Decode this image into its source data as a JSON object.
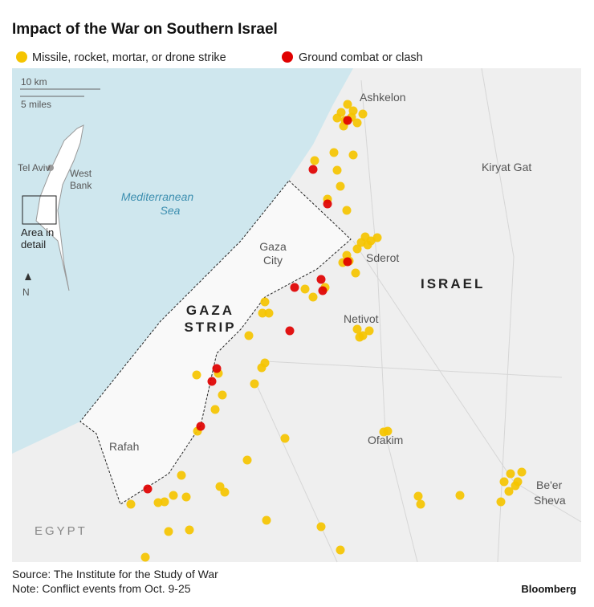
{
  "header": {
    "title": "Impact of the War on Southern Israel"
  },
  "legend": {
    "items": [
      {
        "label": "Missile, rocket, mortar, or drone strike",
        "color": "#f5c400"
      },
      {
        "label": "Ground combat or clash",
        "color": "#e00000"
      }
    ]
  },
  "scale": {
    "km": "10 km",
    "miles": "5 miles"
  },
  "inset": {
    "tel_aviv": "Tel Aviv",
    "west_bank": [
      "West",
      "Bank"
    ],
    "area": [
      "Area in",
      "detail"
    ],
    "north": "N"
  },
  "places": {
    "sea": [
      "Mediterranean",
      "Sea"
    ],
    "ashkelon": "Ashkelon",
    "kiryat_gat": "Kiryat Gat",
    "gaza_city": [
      "Gaza",
      "City"
    ],
    "sderot": "Sderot",
    "israel": "ISRAEL",
    "gaza_strip": [
      "GAZA",
      "STRIP"
    ],
    "netivot": "Netivot",
    "ofakim": "Ofakim",
    "rafah": "Rafah",
    "beer_sheva": [
      "Be'er",
      "Sheva"
    ],
    "egypt": "EGYPT"
  },
  "footer": {
    "source": "Source: The Institute for the Study of War",
    "note": "Note: Conflict events from Oct. 9-25",
    "brand": "Bloomberg"
  }
}
